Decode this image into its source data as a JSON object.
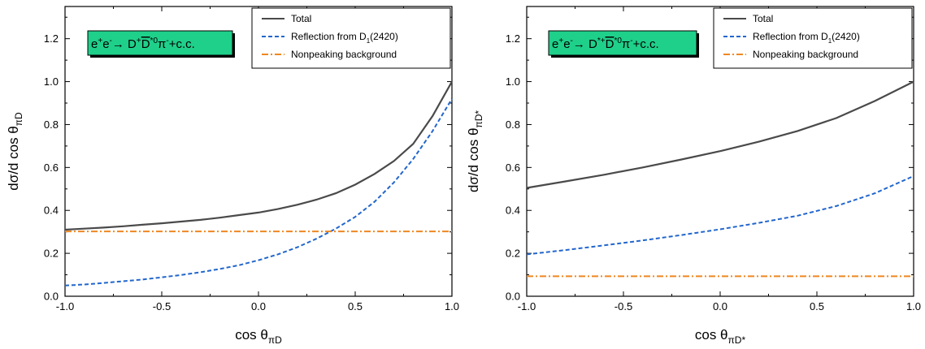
{
  "chart_data": [
    {
      "type": "line",
      "reaction": {
        "base": "e+e-→ D+D*0π-+c.c.",
        "parts": [
          {
            "t": "e"
          },
          {
            "t": "+",
            "s": "sup"
          },
          {
            "t": "e"
          },
          {
            "t": "-",
            "s": "sup"
          },
          {
            "t": "→ D"
          },
          {
            "t": "+",
            "s": "sup"
          },
          {
            "t": "D",
            "s": "over"
          },
          {
            "t": "*0",
            "s": "sup"
          },
          {
            "t": "π"
          },
          {
            "t": "-",
            "s": "sup"
          },
          {
            "t": "+c.c."
          }
        ]
      },
      "xlabel": {
        "main": "cos θ",
        "sub": "πD"
      },
      "ylabel": {
        "main": "dσ/d cos θ",
        "sub": "πD"
      },
      "xlim": [
        -1.0,
        1.0
      ],
      "ylim": [
        0.0,
        1.35
      ],
      "xticks": [
        "-1.0",
        "-0.5",
        "0.0",
        "0.5",
        "1.0"
      ],
      "yticks": [
        "0.0",
        "0.2",
        "0.4",
        "0.6",
        "0.8",
        "1.0",
        "1.2"
      ],
      "legend_position": "top-right",
      "series": [
        {
          "name": "Total",
          "color": "#4a4a4a",
          "style": "solid",
          "x": [
            -1.0,
            -0.9,
            -0.8,
            -0.7,
            -0.6,
            -0.5,
            -0.4,
            -0.3,
            -0.2,
            -0.1,
            0.0,
            0.1,
            0.2,
            0.3,
            0.4,
            0.5,
            0.6,
            0.7,
            0.8,
            0.9,
            1.0
          ],
          "y": [
            0.31,
            0.315,
            0.32,
            0.326,
            0.333,
            0.34,
            0.348,
            0.356,
            0.366,
            0.378,
            0.39,
            0.406,
            0.426,
            0.45,
            0.48,
            0.52,
            0.57,
            0.63,
            0.71,
            0.84,
            1.0
          ]
        },
        {
          "name": "Reflection from D1(2420)",
          "name_parts": [
            {
              "t": "Reflection from D"
            },
            {
              "t": "1",
              "s": "sub"
            },
            {
              "t": "(2420)"
            }
          ],
          "color": "#2266cc",
          "style": "dashed",
          "x": [
            -1.0,
            -0.9,
            -0.8,
            -0.7,
            -0.6,
            -0.5,
            -0.4,
            -0.3,
            -0.2,
            -0.1,
            0.0,
            0.1,
            0.2,
            0.3,
            0.4,
            0.5,
            0.6,
            0.7,
            0.8,
            0.9,
            1.0
          ],
          "y": [
            0.05,
            0.055,
            0.062,
            0.07,
            0.078,
            0.088,
            0.099,
            0.112,
            0.127,
            0.145,
            0.168,
            0.195,
            0.228,
            0.268,
            0.315,
            0.37,
            0.44,
            0.53,
            0.64,
            0.77,
            0.92
          ]
        },
        {
          "name": "Nonpeaking background",
          "color": "#ee8822",
          "style": "dashdot",
          "x": [
            -1.0,
            1.0
          ],
          "y": [
            0.302,
            0.302
          ]
        }
      ]
    },
    {
      "type": "line",
      "reaction": {
        "base": "e+e-→ D*+D*0π-+c.c.",
        "parts": [
          {
            "t": "e"
          },
          {
            "t": "+",
            "s": "sup"
          },
          {
            "t": "e"
          },
          {
            "t": "-",
            "s": "sup"
          },
          {
            "t": "→ D"
          },
          {
            "t": "*+",
            "s": "sup"
          },
          {
            "t": "D",
            "s": "over"
          },
          {
            "t": "*0",
            "s": "sup"
          },
          {
            "t": "π"
          },
          {
            "t": "-",
            "s": "sup"
          },
          {
            "t": "+c.c."
          }
        ]
      },
      "xlabel": {
        "main": "cos θ",
        "sub": "πD*"
      },
      "ylabel": {
        "main": "dσ/d cos θ",
        "sub": "πD*"
      },
      "xlim": [
        -1.0,
        1.0
      ],
      "ylim": [
        0.0,
        1.35
      ],
      "xticks": [
        "-1.0",
        "-0.5",
        "0.0",
        "0.5",
        "1.0"
      ],
      "yticks": [
        "0.0",
        "0.2",
        "0.4",
        "0.6",
        "0.8",
        "1.0",
        "1.2"
      ],
      "legend_position": "top-right",
      "series": [
        {
          "name": "Total",
          "color": "#4a4a4a",
          "style": "solid",
          "x": [
            -1.0,
            -0.8,
            -0.6,
            -0.4,
            -0.2,
            0.0,
            0.2,
            0.4,
            0.6,
            0.8,
            1.0
          ],
          "y": [
            0.505,
            0.535,
            0.566,
            0.6,
            0.637,
            0.676,
            0.72,
            0.77,
            0.83,
            0.91,
            1.0
          ]
        },
        {
          "name": "Reflection from D1(2420)",
          "name_parts": [
            {
              "t": "Reflection from D"
            },
            {
              "t": "1",
              "s": "sub"
            },
            {
              "t": "(2420)"
            }
          ],
          "color": "#2266cc",
          "style": "dashed",
          "x": [
            -1.0,
            -0.8,
            -0.6,
            -0.4,
            -0.2,
            0.0,
            0.2,
            0.4,
            0.6,
            0.8,
            1.0
          ],
          "y": [
            0.195,
            0.215,
            0.237,
            0.26,
            0.285,
            0.312,
            0.342,
            0.375,
            0.42,
            0.48,
            0.56
          ]
        },
        {
          "name": "Nonpeaking background",
          "color": "#ee8822",
          "style": "dashdot",
          "x": [
            -1.0,
            1.0
          ],
          "y": [
            0.093,
            0.093
          ]
        }
      ]
    }
  ]
}
